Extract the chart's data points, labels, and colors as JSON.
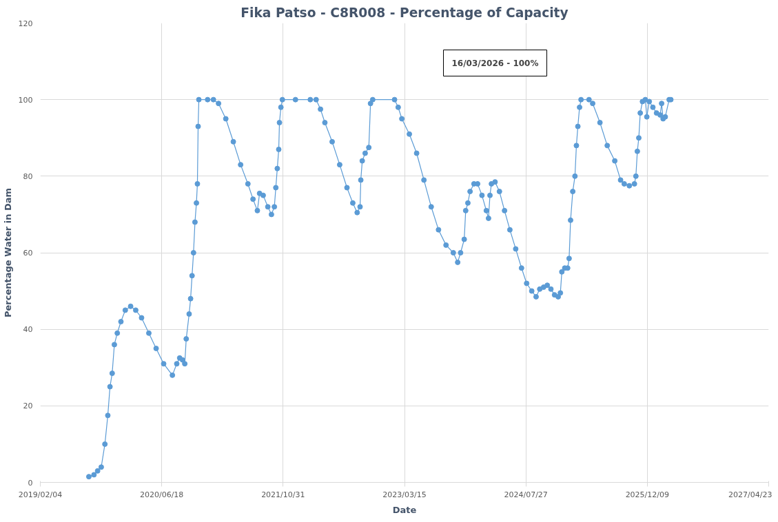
{
  "chart_data": {
    "type": "line",
    "title": "Fika Patso - C8R008 - Percentage of Capacity",
    "xlabel": "Date",
    "ylabel": "Percentage Water in Dam",
    "annotations": [
      "16/03/2026 - 100%"
    ],
    "x": [
      "2019-08-23",
      "2019-09-13",
      "2019-09-28",
      "2019-10-13",
      "2019-10-28",
      "2019-11-09",
      "2019-11-18",
      "2019-11-27",
      "2019-12-06",
      "2019-12-18",
      "2020-01-02",
      "2020-01-20",
      "2020-02-11",
      "2020-03-03",
      "2020-03-27",
      "2020-04-26",
      "2020-05-26",
      "2020-06-26",
      "2020-08-01",
      "2020-08-19",
      "2020-08-31",
      "2020-09-12",
      "2020-09-21",
      "2020-09-27",
      "2020-10-09",
      "2020-10-15",
      "2020-10-21",
      "2020-10-27",
      "2020-11-02",
      "2020-11-08",
      "2020-11-12",
      "2020-11-15",
      "2020-11-18",
      "2020-12-24",
      "2021-01-17",
      "2021-02-07",
      "2021-03-09",
      "2021-04-09",
      "2021-05-09",
      "2021-06-08",
      "2021-06-29",
      "2021-07-17",
      "2021-07-26",
      "2021-08-10",
      "2021-08-29",
      "2021-09-13",
      "2021-09-25",
      "2021-10-01",
      "2021-10-07",
      "2021-10-13",
      "2021-10-16",
      "2021-10-22",
      "2021-10-28",
      "2021-12-21",
      "2022-02-20",
      "2022-03-16",
      "2022-04-03",
      "2022-04-21",
      "2022-05-21",
      "2022-06-21",
      "2022-07-21",
      "2022-08-14",
      "2022-09-01",
      "2022-09-13",
      "2022-09-16",
      "2022-09-22",
      "2022-10-04",
      "2022-10-19",
      "2022-10-26",
      "2022-11-04",
      "2023-02-02",
      "2023-02-17",
      "2023-03-04",
      "2023-04-04",
      "2023-05-04",
      "2023-06-03",
      "2023-07-03",
      "2023-08-02",
      "2023-09-02",
      "2023-10-02",
      "2023-10-20",
      "2023-11-01",
      "2023-11-16",
      "2023-11-22",
      "2023-12-01",
      "2023-12-10",
      "2023-12-26",
      "2024-01-10",
      "2024-01-28",
      "2024-02-15",
      "2024-02-24",
      "2024-03-01",
      "2024-03-07",
      "2024-03-22",
      "2024-04-09",
      "2024-04-30",
      "2024-05-22",
      "2024-06-15",
      "2024-07-09",
      "2024-07-30",
      "2024-08-20",
      "2024-09-07",
      "2024-09-22",
      "2024-10-08",
      "2024-10-23",
      "2024-11-07",
      "2024-11-22",
      "2024-12-07",
      "2024-12-16",
      "2024-12-22",
      "2025-01-03",
      "2025-01-15",
      "2025-01-21",
      "2025-01-27",
      "2025-02-05",
      "2025-02-14",
      "2025-02-20",
      "2025-02-26",
      "2025-03-05",
      "2025-03-11",
      "2025-04-13",
      "2025-04-28",
      "2025-05-28",
      "2025-06-27",
      "2025-07-28",
      "2025-08-21",
      "2025-09-05",
      "2025-09-26",
      "2025-10-17",
      "2025-10-23",
      "2025-10-29",
      "2025-11-04",
      "2025-11-10",
      "2025-11-19",
      "2025-12-01",
      "2025-12-07",
      "2025-12-17",
      "2026-01-01",
      "2026-01-16",
      "2026-01-31",
      "2026-02-06",
      "2026-02-12",
      "2026-02-21",
      "2026-03-09",
      "2026-03-16"
    ],
    "series": [
      {
        "color": "#5b9bd5",
        "values": [
          1.5,
          2,
          3,
          4,
          10,
          17.5,
          25,
          28.5,
          36,
          39,
          42,
          45,
          46,
          45,
          43,
          39,
          35,
          31,
          28,
          31,
          32.5,
          32,
          31,
          37.5,
          44,
          48,
          54,
          60,
          68,
          73,
          78,
          93,
          100,
          100,
          100,
          99,
          95,
          89,
          83,
          78,
          74,
          71,
          75.5,
          75,
          72,
          70,
          72,
          77,
          82,
          87,
          94,
          98,
          100,
          100,
          100,
          100,
          97.5,
          94,
          89,
          83,
          77,
          73,
          70.5,
          72,
          79,
          84,
          86,
          87.5,
          99,
          100,
          100,
          98,
          95,
          91,
          86,
          79,
          72,
          66,
          62,
          60,
          57.5,
          60,
          63.5,
          71,
          73,
          76,
          78,
          78,
          75,
          71,
          69,
          75,
          78,
          78.5,
          76,
          71,
          66,
          61,
          56,
          52,
          50,
          48.5,
          50.5,
          51,
          51.5,
          50.5,
          49,
          48.5,
          49.5,
          55,
          56,
          56,
          58.5,
          68.5,
          76,
          80,
          88,
          93,
          98,
          100,
          100,
          99,
          94,
          88,
          84,
          79,
          78,
          77.5,
          78,
          80,
          86.5,
          90,
          96.5,
          99.5,
          100,
          95.5,
          99.5,
          98,
          96.5,
          96,
          99,
          95,
          95.5,
          100,
          100
        ]
      }
    ],
    "xlim": [
      "2019-02-04",
      "2027-04-23"
    ],
    "xticks": [
      {
        "value": "2019-02-04",
        "label": "2019/02/04"
      },
      {
        "value": "2020-06-18",
        "label": "2020/06/18"
      },
      {
        "value": "2021-10-31",
        "label": "2021/10/31"
      },
      {
        "value": "2023-03-15",
        "label": "2023/03/15"
      },
      {
        "value": "2024-07-27",
        "label": "2024/07/27"
      },
      {
        "value": "2025-12-09",
        "label": "2025/12/09"
      },
      {
        "value": "2027-04-23",
        "label": "2027/04/23"
      }
    ],
    "ylim": [
      0,
      120
    ],
    "yticks": [
      0,
      20,
      40,
      60,
      80,
      100,
      120
    ],
    "grid": true,
    "marker": "circle",
    "line_style": "solid"
  }
}
